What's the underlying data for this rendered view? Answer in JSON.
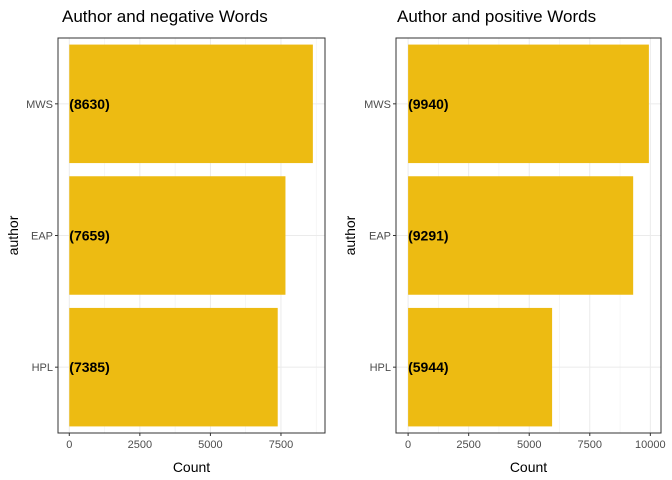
{
  "chart_data": [
    {
      "type": "bar",
      "orientation": "horizontal",
      "title": "Author and negative Words",
      "xlabel": "Count",
      "ylabel": "author",
      "categories": [
        "MWS",
        "EAP",
        "HPL"
      ],
      "values": [
        8630,
        7659,
        7385
      ],
      "data_labels": [
        "(8630)",
        "(7659)",
        "(7385)"
      ],
      "xlim": [
        -400,
        9060
      ],
      "xticks": [
        0,
        2500,
        5000,
        7500
      ],
      "xtick_labels": [
        "0",
        "2500",
        "5000",
        "7500"
      ],
      "grid": true,
      "bar_color": "#EDBB12"
    },
    {
      "type": "bar",
      "orientation": "horizontal",
      "title": "Author and positive Words",
      "xlabel": "Count",
      "ylabel": "author",
      "categories": [
        "MWS",
        "EAP",
        "HPL"
      ],
      "values": [
        9940,
        9291,
        5944
      ],
      "data_labels": [
        "(9940)",
        "(9291)",
        "(5944)"
      ],
      "xlim": [
        -500,
        10440
      ],
      "xticks": [
        0,
        2500,
        5000,
        7500,
        10000
      ],
      "xtick_labels": [
        "0",
        "2500",
        "5000",
        "7500",
        "10000"
      ],
      "grid": true,
      "bar_color": "#EDBB12"
    }
  ]
}
